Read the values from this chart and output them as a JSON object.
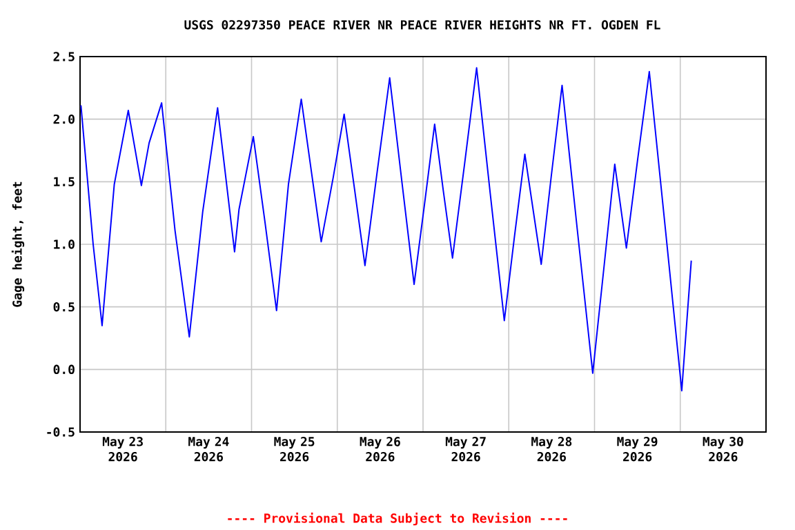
{
  "chart_data": {
    "type": "line",
    "title": "USGS 02297350 PEACE RIVER NR PEACE RIVER HEIGHTS NR FT. OGDEN FL",
    "ylabel": "Gage height, feet",
    "annotations": [
      "---- Provisional Data Subject to Revision ----"
    ],
    "x": [
      "2026-05-23T00:15",
      "2026-05-23T03:40",
      "2026-05-23T06:10",
      "2026-05-23T09:35",
      "2026-05-23T13:30",
      "2026-05-23T17:10",
      "2026-05-23T19:20",
      "2026-05-23T22:50",
      "2026-05-24T02:35",
      "2026-05-24T06:35",
      "2026-05-24T10:20",
      "2026-05-24T14:30",
      "2026-05-24T19:15",
      "2026-05-24T20:30",
      "2026-05-25T00:30",
      "2026-05-25T03:45",
      "2026-05-25T07:00",
      "2026-05-25T10:20",
      "2026-05-25T13:55",
      "2026-05-25T19:30",
      "2026-05-25T22:50",
      "2026-05-26T01:55",
      "2026-05-26T04:50",
      "2026-05-26T07:45",
      "2026-05-26T11:10",
      "2026-05-26T14:40",
      "2026-05-26T18:05",
      "2026-05-26T21:30",
      "2026-05-27T00:25",
      "2026-05-27T03:15",
      "2026-05-27T05:40",
      "2026-05-27T08:15",
      "2026-05-27T11:40",
      "2026-05-27T15:00",
      "2026-05-27T18:50",
      "2026-05-27T22:45",
      "2026-05-28T01:35",
      "2026-05-28T04:30",
      "2026-05-28T09:05",
      "2026-05-28T11:55",
      "2026-05-28T14:55",
      "2026-05-28T19:10",
      "2026-05-28T23:30",
      "2026-05-29T02:35",
      "2026-05-29T05:40",
      "2026-05-29T08:55",
      "2026-05-29T12:05",
      "2026-05-29T15:20",
      "2026-05-29T19:55",
      "2026-05-30T00:25",
      "2026-05-30T03:05"
    ],
    "series": [
      {
        "color": "#0000ff",
        "values": [
          2.11,
          1.0,
          0.35,
          1.48,
          2.07,
          1.47,
          1.81,
          2.13,
          1.11,
          0.26,
          1.26,
          2.09,
          0.94,
          1.28,
          1.86,
          1.18,
          0.47,
          1.48,
          2.16,
          1.02,
          1.53,
          2.04,
          1.44,
          0.83,
          1.58,
          2.33,
          1.5,
          0.68,
          1.32,
          1.96,
          1.43,
          0.89,
          1.65,
          2.41,
          1.4,
          0.39,
          1.06,
          1.72,
          0.84,
          1.55,
          2.27,
          1.12,
          -0.03,
          0.8,
          1.64,
          0.97,
          1.68,
          2.38,
          1.1,
          -0.17,
          0.87
        ]
      }
    ],
    "xlim": [
      "2026-05-23",
      "2026-05-31"
    ],
    "xticks": [
      {
        "value": "2026-05-23T12:00",
        "label": "May 23 2026"
      },
      {
        "value": "2026-05-24T12:00",
        "label": "May 24 2026"
      },
      {
        "value": "2026-05-25T12:00",
        "label": "May 25 2026"
      },
      {
        "value": "2026-05-26T12:00",
        "label": "May 26 2026"
      },
      {
        "value": "2026-05-27T12:00",
        "label": "May 27 2026"
      },
      {
        "value": "2026-05-28T12:00",
        "label": "May 28 2026"
      },
      {
        "value": "2026-05-29T12:00",
        "label": "May 29 2026"
      },
      {
        "value": "2026-05-30T12:00",
        "label": "May 30 2026"
      },
      {
        "value": "2026-05-24",
        "label": null
      },
      {
        "value": "2026-05-25",
        "label": null
      },
      {
        "value": "2026-05-26",
        "label": null
      },
      {
        "value": "2026-05-27",
        "label": null
      },
      {
        "value": "2026-05-28",
        "label": null
      },
      {
        "value": "2026-05-29",
        "label": null
      },
      {
        "value": "2026-05-30",
        "label": null
      }
    ],
    "ylim": [
      -0.5,
      2.5
    ],
    "yticks": [
      {
        "value": -0.5,
        "label": "-0.5"
      },
      {
        "value": 0,
        "label": "0.0"
      },
      {
        "value": 0.5,
        "label": "0.5"
      },
      {
        "value": 1,
        "label": "1.0"
      },
      {
        "value": 1.5,
        "label": "1.5"
      },
      {
        "value": 2,
        "label": "2.0"
      },
      {
        "value": 2.5,
        "label": "2.5"
      }
    ],
    "grid": true,
    "marker": "none",
    "line_style": "solid"
  }
}
